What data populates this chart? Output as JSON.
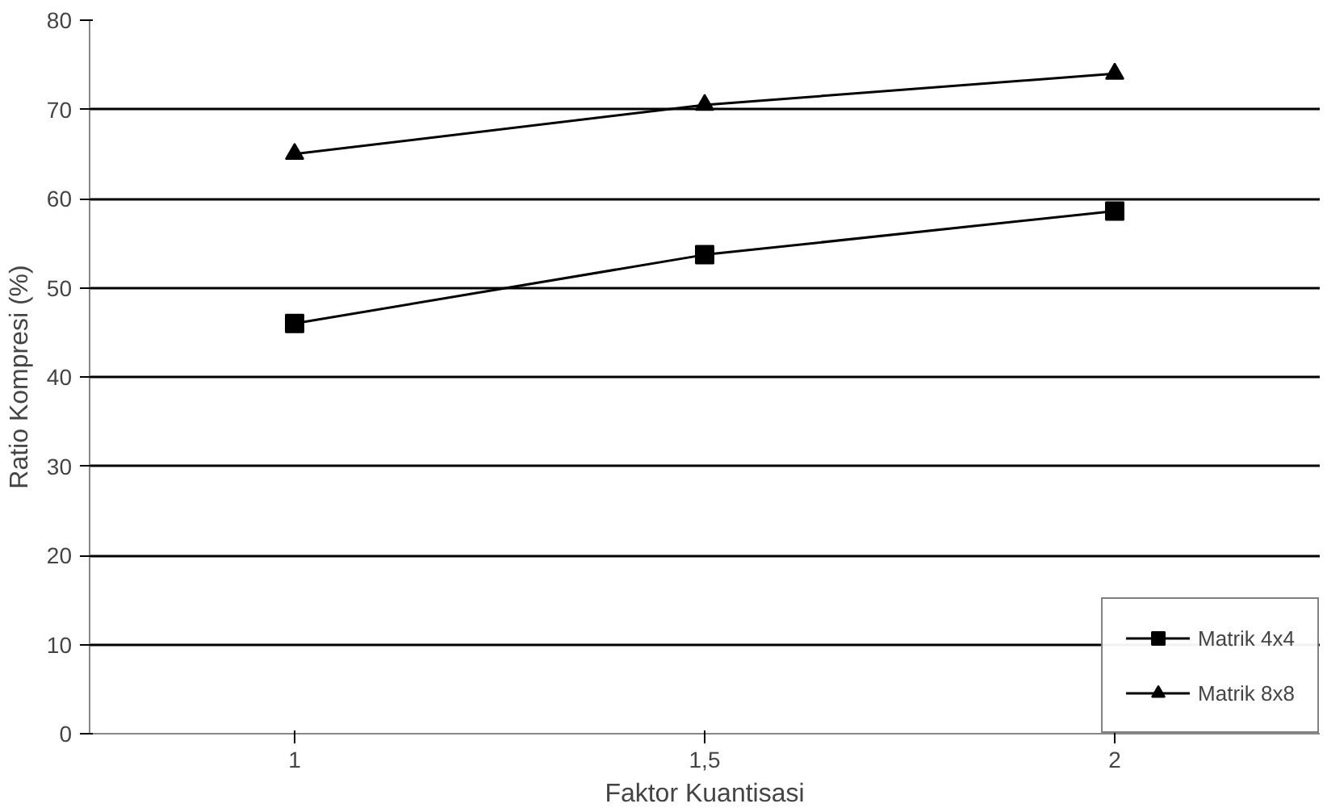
{
  "chart_data": {
    "type": "line",
    "xlabel": "Faktor Kuantisasi",
    "ylabel": "Ratio Kompresi (%)",
    "categories": [
      "1",
      "1,5",
      "2"
    ],
    "series": [
      {
        "name": "Matrik 4x4",
        "color": "#000000",
        "marker": "square",
        "values": [
          46,
          53.7,
          58.6
        ]
      },
      {
        "name": "Matrik 8x8",
        "color": "#000000",
        "marker": "triangle",
        "values": [
          65,
          70.5,
          74
        ]
      }
    ],
    "ylim": [
      0,
      80
    ],
    "yticks": [
      0,
      10,
      20,
      30,
      40,
      50,
      60,
      70,
      80
    ],
    "grid": "y",
    "legend": "bottom right",
    "line_style": "solid"
  }
}
